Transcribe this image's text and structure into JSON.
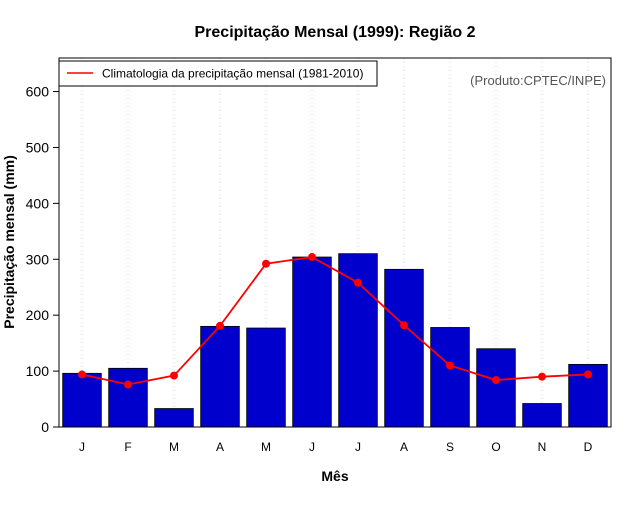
{
  "chart_data": {
    "type": "bar",
    "title": "Precipitação Mensal (1999): Região 2",
    "xlabel": "Mês",
    "ylabel": "Precipitação mensal (mm)",
    "ylim": [
      0,
      660
    ],
    "yticks": [
      0,
      100,
      200,
      300,
      400,
      500,
      600
    ],
    "categories": [
      "J",
      "F",
      "M",
      "A",
      "M",
      "J",
      "J",
      "A",
      "S",
      "O",
      "N",
      "D"
    ],
    "series": [
      {
        "name": "Precipitação mensal (1999)",
        "kind": "bar",
        "color": "#0000cd",
        "values": [
          96,
          105,
          33,
          180,
          177,
          304,
          310,
          282,
          178,
          140,
          42,
          112
        ]
      },
      {
        "name": "Climatologia da precipitação mensal (1981-2010)",
        "kind": "line",
        "color": "#ff0000",
        "values": [
          94,
          76,
          92,
          181,
          292,
          304,
          258,
          182,
          110,
          84,
          90,
          94
        ]
      }
    ],
    "legend": {
      "position": "top-left",
      "entries": [
        "Climatologia da precipitação mensal (1981-2010)"
      ]
    },
    "annotation": "(Produto:CPTEC/INPE)",
    "grid": "vertical-dotted"
  }
}
